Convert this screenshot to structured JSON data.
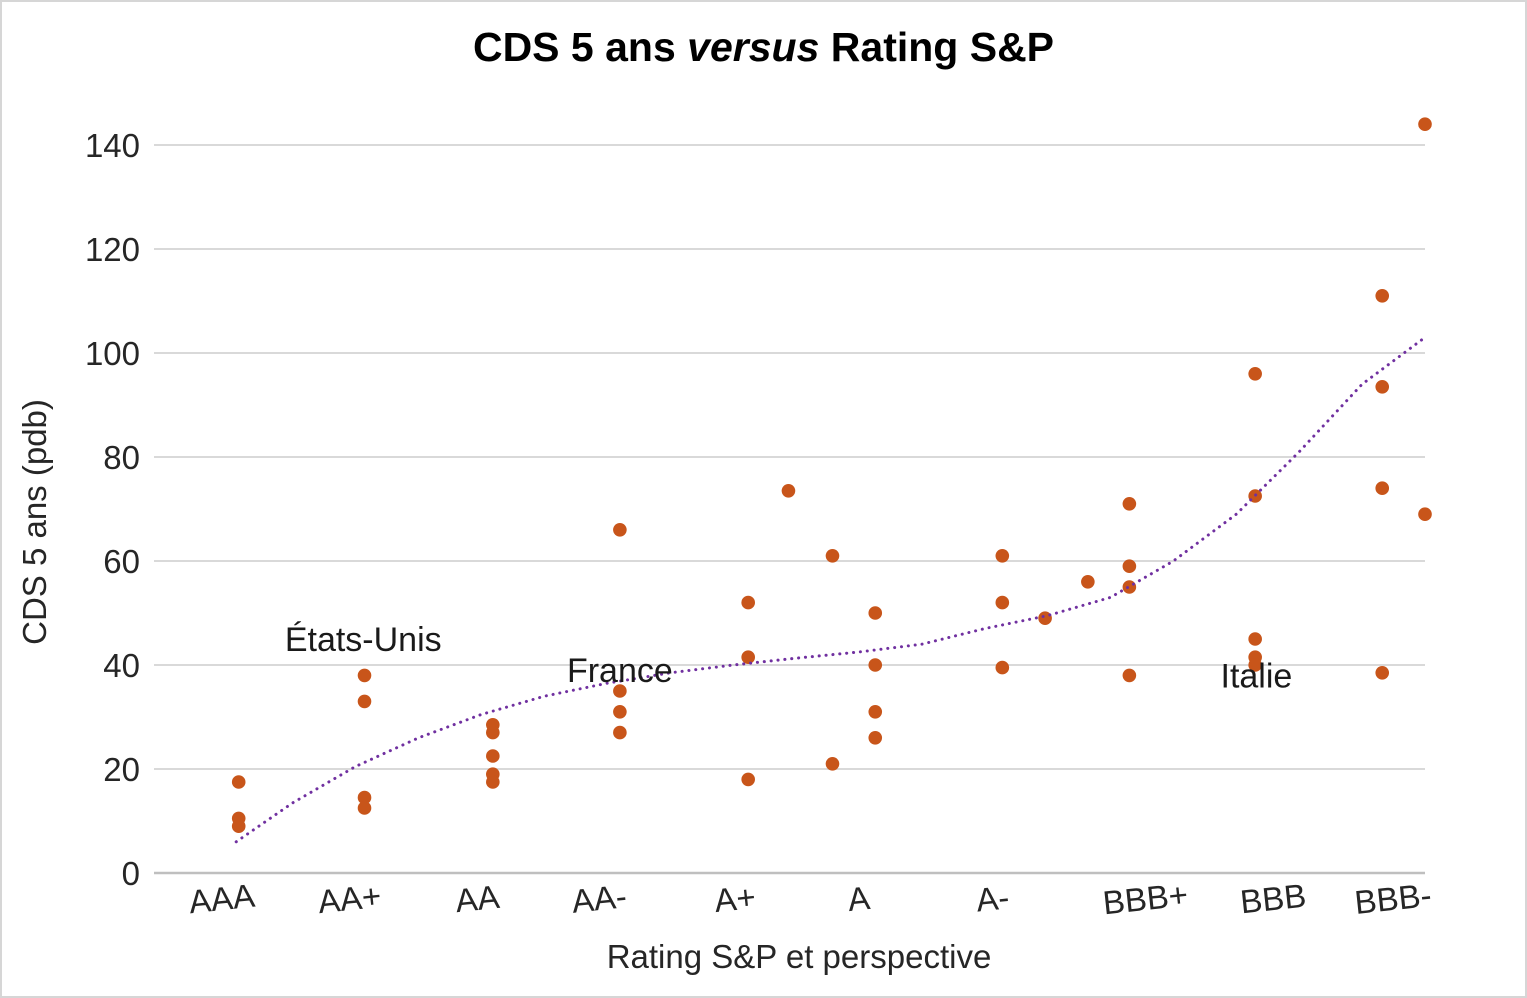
{
  "title": {
    "prefix": "CDS 5 ans ",
    "italic": "versus",
    "suffix": " Rating S&P"
  },
  "colors": {
    "point": "#C8551A",
    "trendline": "#7030A0",
    "gridline": "#D9D9D9",
    "axis_line": "#BFBFBF",
    "tick_text": "#262626",
    "annotation_text": "#1A1A1A",
    "title_text": "#000000"
  },
  "chart_data": {
    "type": "scatter",
    "title": "CDS 5 ans versus Rating S&P",
    "xlabel": "Rating S&P et perspective",
    "ylabel": "CDS 5 ans (pdb)",
    "x_categories": [
      "AAA",
      "AA+",
      "AA",
      "AA-",
      "A+",
      "A",
      "A-",
      "BBB+",
      "BBB",
      "BBB-"
    ],
    "y_ticks": [
      0,
      20,
      40,
      60,
      80,
      100,
      120,
      140
    ],
    "ylim": [
      0,
      150
    ],
    "xlim_units": [
      0.5,
      10.5
    ],
    "grid": "horizontal",
    "legend": "none",
    "points_note": "x in rating-scale units (1=AAA ... 10=BBB-, fractional x = outlook/perspective offset); y in basis points (pdb)",
    "points": [
      {
        "x": 1.07,
        "y": 17.5
      },
      {
        "x": 1.07,
        "y": 10.5
      },
      {
        "x": 1.07,
        "y": 9
      },
      {
        "x": 2.07,
        "y": 38
      },
      {
        "x": 2.07,
        "y": 33
      },
      {
        "x": 2.07,
        "y": 14.5
      },
      {
        "x": 2.07,
        "y": 12.5
      },
      {
        "x": 3.09,
        "y": 28.5
      },
      {
        "x": 3.09,
        "y": 27
      },
      {
        "x": 3.09,
        "y": 22.5
      },
      {
        "x": 3.09,
        "y": 19
      },
      {
        "x": 3.09,
        "y": 17.5
      },
      {
        "x": 4.1,
        "y": 66
      },
      {
        "x": 4.1,
        "y": 35
      },
      {
        "x": 4.1,
        "y": 31
      },
      {
        "x": 4.1,
        "y": 27
      },
      {
        "x": 5.12,
        "y": 52
      },
      {
        "x": 5.12,
        "y": 41.5
      },
      {
        "x": 5.12,
        "y": 18
      },
      {
        "x": 5.44,
        "y": 73.5
      },
      {
        "x": 5.79,
        "y": 61
      },
      {
        "x": 5.79,
        "y": 21
      },
      {
        "x": 6.13,
        "y": 50
      },
      {
        "x": 6.13,
        "y": 40
      },
      {
        "x": 6.13,
        "y": 31
      },
      {
        "x": 6.13,
        "y": 26
      },
      {
        "x": 7.14,
        "y": 61
      },
      {
        "x": 7.14,
        "y": 52
      },
      {
        "x": 7.14,
        "y": 39.5
      },
      {
        "x": 7.48,
        "y": 49
      },
      {
        "x": 7.82,
        "y": 56
      },
      {
        "x": 8.15,
        "y": 71
      },
      {
        "x": 8.15,
        "y": 59
      },
      {
        "x": 8.15,
        "y": 55
      },
      {
        "x": 8.15,
        "y": 38
      },
      {
        "x": 9.15,
        "y": 96
      },
      {
        "x": 9.15,
        "y": 72.5
      },
      {
        "x": 9.15,
        "y": 45
      },
      {
        "x": 9.15,
        "y": 41.5
      },
      {
        "x": 9.15,
        "y": 40
      },
      {
        "x": 10.16,
        "y": 111
      },
      {
        "x": 10.16,
        "y": 93.5
      },
      {
        "x": 10.16,
        "y": 74
      },
      {
        "x": 10.16,
        "y": 38.5
      },
      {
        "x": 10.5,
        "y": 144
      },
      {
        "x": 10.5,
        "y": 69
      }
    ],
    "trendline": {
      "style": "dotted",
      "points": [
        [
          1.05,
          6
        ],
        [
          1.5,
          13.5
        ],
        [
          2.0,
          20.5
        ],
        [
          2.5,
          26
        ],
        [
          3.0,
          30.5
        ],
        [
          3.5,
          34
        ],
        [
          4.0,
          36.5
        ],
        [
          4.5,
          38.5
        ],
        [
          5.0,
          40
        ],
        [
          5.5,
          41.3
        ],
        [
          6.0,
          42.5
        ],
        [
          6.5,
          44
        ],
        [
          7.0,
          47
        ],
        [
          7.5,
          49.5
        ],
        [
          8.0,
          53
        ],
        [
          8.5,
          60
        ],
        [
          9.0,
          69
        ],
        [
          9.5,
          81
        ],
        [
          10.0,
          94
        ],
        [
          10.5,
          103
        ]
      ]
    },
    "annotations": [
      {
        "label": "États-Unis",
        "x": 2.06,
        "y": 45
      },
      {
        "label": "France",
        "x": 4.1,
        "y": 39
      },
      {
        "label": "Italie",
        "x": 9.16,
        "y": 38
      }
    ]
  }
}
